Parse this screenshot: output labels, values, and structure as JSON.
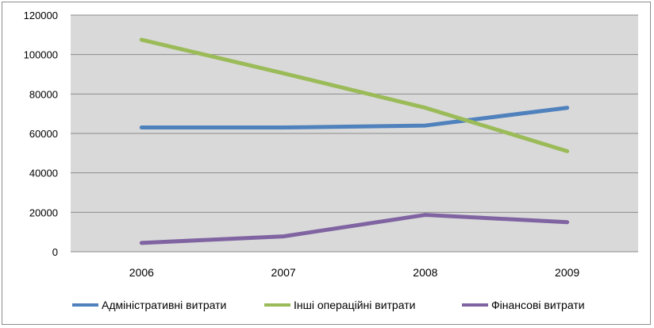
{
  "chart_data": {
    "type": "line",
    "categories": [
      "2006",
      "2007",
      "2008",
      "2009"
    ],
    "series": [
      {
        "name": "Адміністративні витрати",
        "color": "#4f81bd",
        "values": [
          63000,
          63000,
          64000,
          73000
        ]
      },
      {
        "name": "Інші операційні витрати",
        "color": "#9bbb59",
        "values": [
          107500,
          90500,
          73000,
          51000
        ]
      },
      {
        "name": "Фінансові витрати",
        "color": "#8064a2",
        "values": [
          4500,
          7800,
          18700,
          15000
        ]
      }
    ],
    "yticks": [
      "0",
      "20000",
      "40000",
      "60000",
      "80000",
      "100000",
      "120000"
    ],
    "ylim": [
      0,
      120000
    ],
    "grid": true,
    "plot_background": "#d9d9d9",
    "legend_position": "bottom",
    "title": "",
    "xlabel": "",
    "ylabel": ""
  }
}
